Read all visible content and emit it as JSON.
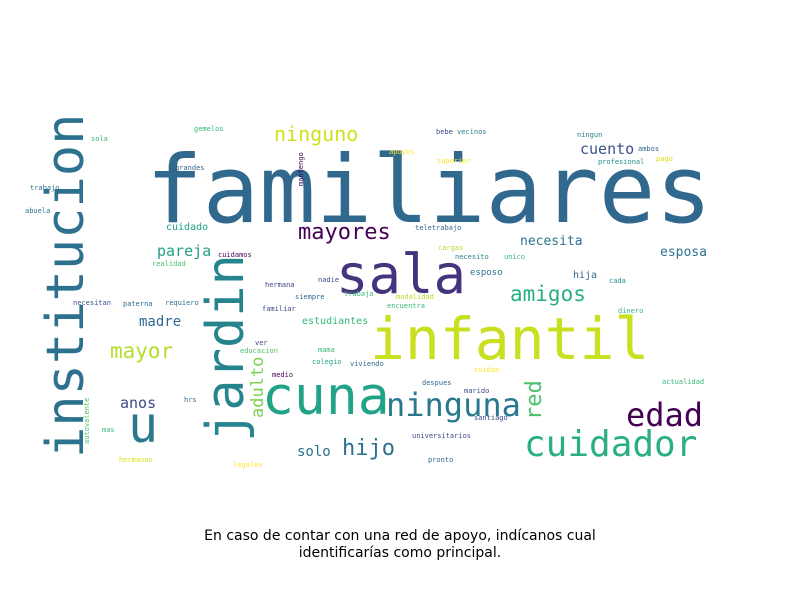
{
  "caption": {
    "line1": "En caso de contar con una red de apoyo, indícanos cual",
    "line2": "identificarías como principal."
  },
  "colors": {
    "dark_purple": "#440154",
    "indigo": "#46337e",
    "slate": "#365c8d",
    "blue": "#277f8e",
    "teal": "#1fa187",
    "green": "#4ac16d",
    "lime": "#a0da39",
    "yellow": "#d8e219",
    "gold": "#fde725"
  },
  "words": [
    {
      "text": "familiares",
      "color": "#31688e"
    },
    {
      "text": "institucion",
      "color": "#2c728e"
    },
    {
      "text": "sala",
      "color": "#46337e"
    },
    {
      "text": "infantil",
      "color": "#c8e020"
    },
    {
      "text": "cuna",
      "color": "#20a386"
    },
    {
      "text": "jardin",
      "color": "#25848e"
    },
    {
      "text": "u",
      "color": "#2a788e"
    },
    {
      "text": "ninguna",
      "color": "#2a788e"
    },
    {
      "text": "edad",
      "color": "#440154"
    },
    {
      "text": "cuidador",
      "color": "#2ab07f"
    },
    {
      "text": "mayores",
      "color": "#440154"
    },
    {
      "text": "ninguno",
      "color": "#d0e11c"
    },
    {
      "text": "amigos",
      "color": "#2ab07f"
    },
    {
      "text": "red",
      "color": "#4ac16d"
    },
    {
      "text": "mayor",
      "color": "#b5de2b"
    },
    {
      "text": "hijo",
      "color": "#2c728e"
    },
    {
      "text": "adulto",
      "color": "#7ad151"
    },
    {
      "text": "pareja",
      "color": "#1fa187"
    },
    {
      "text": "cuento",
      "color": "#3b528b"
    },
    {
      "text": "necesita",
      "color": "#2c728e"
    },
    {
      "text": "esposa",
      "color": "#2c728e"
    },
    {
      "text": "madre",
      "color": "#31688e"
    },
    {
      "text": "anos",
      "color": "#3e4989"
    },
    {
      "text": "solo",
      "color": "#2c728e"
    },
    {
      "text": "cuidado",
      "color": "#1f9e89"
    },
    {
      "text": "estudiantes",
      "color": "#35b779"
    },
    {
      "text": "esposo",
      "color": "#2c728e"
    },
    {
      "text": "hija",
      "color": "#31688e"
    },
    {
      "text": "gemelos",
      "color": "#35b779"
    },
    {
      "text": "sola",
      "color": "#35b779"
    },
    {
      "text": "trabajo",
      "color": "#2c728e"
    },
    {
      "text": "abuela",
      "color": "#2c728e"
    },
    {
      "text": "grandes",
      "color": "#31688e"
    },
    {
      "text": "mantengo",
      "color": "#440154"
    },
    {
      "text": "apoyos",
      "color": "#fde725"
    },
    {
      "text": "superior",
      "color": "#fde725"
    },
    {
      "text": "bebe",
      "color": "#3e4989"
    },
    {
      "text": "vecinos",
      "color": "#25848e"
    },
    {
      "text": "ningun",
      "color": "#25848e"
    },
    {
      "text": "ambos",
      "color": "#31688e"
    },
    {
      "text": "pago",
      "color": "#d8e219"
    },
    {
      "text": "profesional",
      "color": "#21918c"
    },
    {
      "text": "teletrabajo",
      "color": "#31688e"
    },
    {
      "text": "cuidamos",
      "color": "#440154"
    },
    {
      "text": "cargas",
      "color": "#b5de2b"
    },
    {
      "text": "necesito",
      "color": "#25848e"
    },
    {
      "text": "unico",
      "color": "#35b779"
    },
    {
      "text": "realidad",
      "color": "#4ac16d"
    },
    {
      "text": "x",
      "color": "#31688e"
    },
    {
      "text": "hermana",
      "color": "#3e4989"
    },
    {
      "text": "nadie",
      "color": "#3e4989"
    },
    {
      "text": "trabaja",
      "color": "#35b779"
    },
    {
      "text": "modalidad",
      "color": "#b5de2b"
    },
    {
      "text": "encuentra",
      "color": "#35b779"
    },
    {
      "text": "cada",
      "color": "#21918c"
    },
    {
      "text": "dinero",
      "color": "#35b779"
    },
    {
      "text": "necesitan",
      "color": "#3b528b"
    },
    {
      "text": "paterna",
      "color": "#31688e"
    },
    {
      "text": "requiero",
      "color": "#2c728e"
    },
    {
      "text": "siempre",
      "color": "#31688e"
    },
    {
      "text": "familiar",
      "color": "#3e4989"
    },
    {
      "text": "ver",
      "color": "#3e4989"
    },
    {
      "text": "educacion",
      "color": "#4ac16d"
    },
    {
      "text": "mama",
      "color": "#35b779"
    },
    {
      "text": "colegio",
      "color": "#1fa187"
    },
    {
      "text": "viviendo",
      "color": "#31688e"
    },
    {
      "text": "cuidan",
      "color": "#fde725"
    },
    {
      "text": "medio",
      "color": "#440154"
    },
    {
      "text": "despues",
      "color": "#31688e"
    },
    {
      "text": "marido",
      "color": "#3e4989"
    },
    {
      "text": "santiago",
      "color": "#3e4989"
    },
    {
      "text": "actualidad",
      "color": "#35b779"
    },
    {
      "text": "hrs",
      "color": "#31688e"
    },
    {
      "text": "autovalente",
      "color": "#4ac16d"
    },
    {
      "text": "mas",
      "color": "#35b779"
    },
    {
      "text": "universitarios",
      "color": "#3e4989"
    },
    {
      "text": "hermanos",
      "color": "#d8e219"
    },
    {
      "text": "legales",
      "color": "#fde725"
    },
    {
      "text": "pronto",
      "color": "#31688e"
    }
  ]
}
